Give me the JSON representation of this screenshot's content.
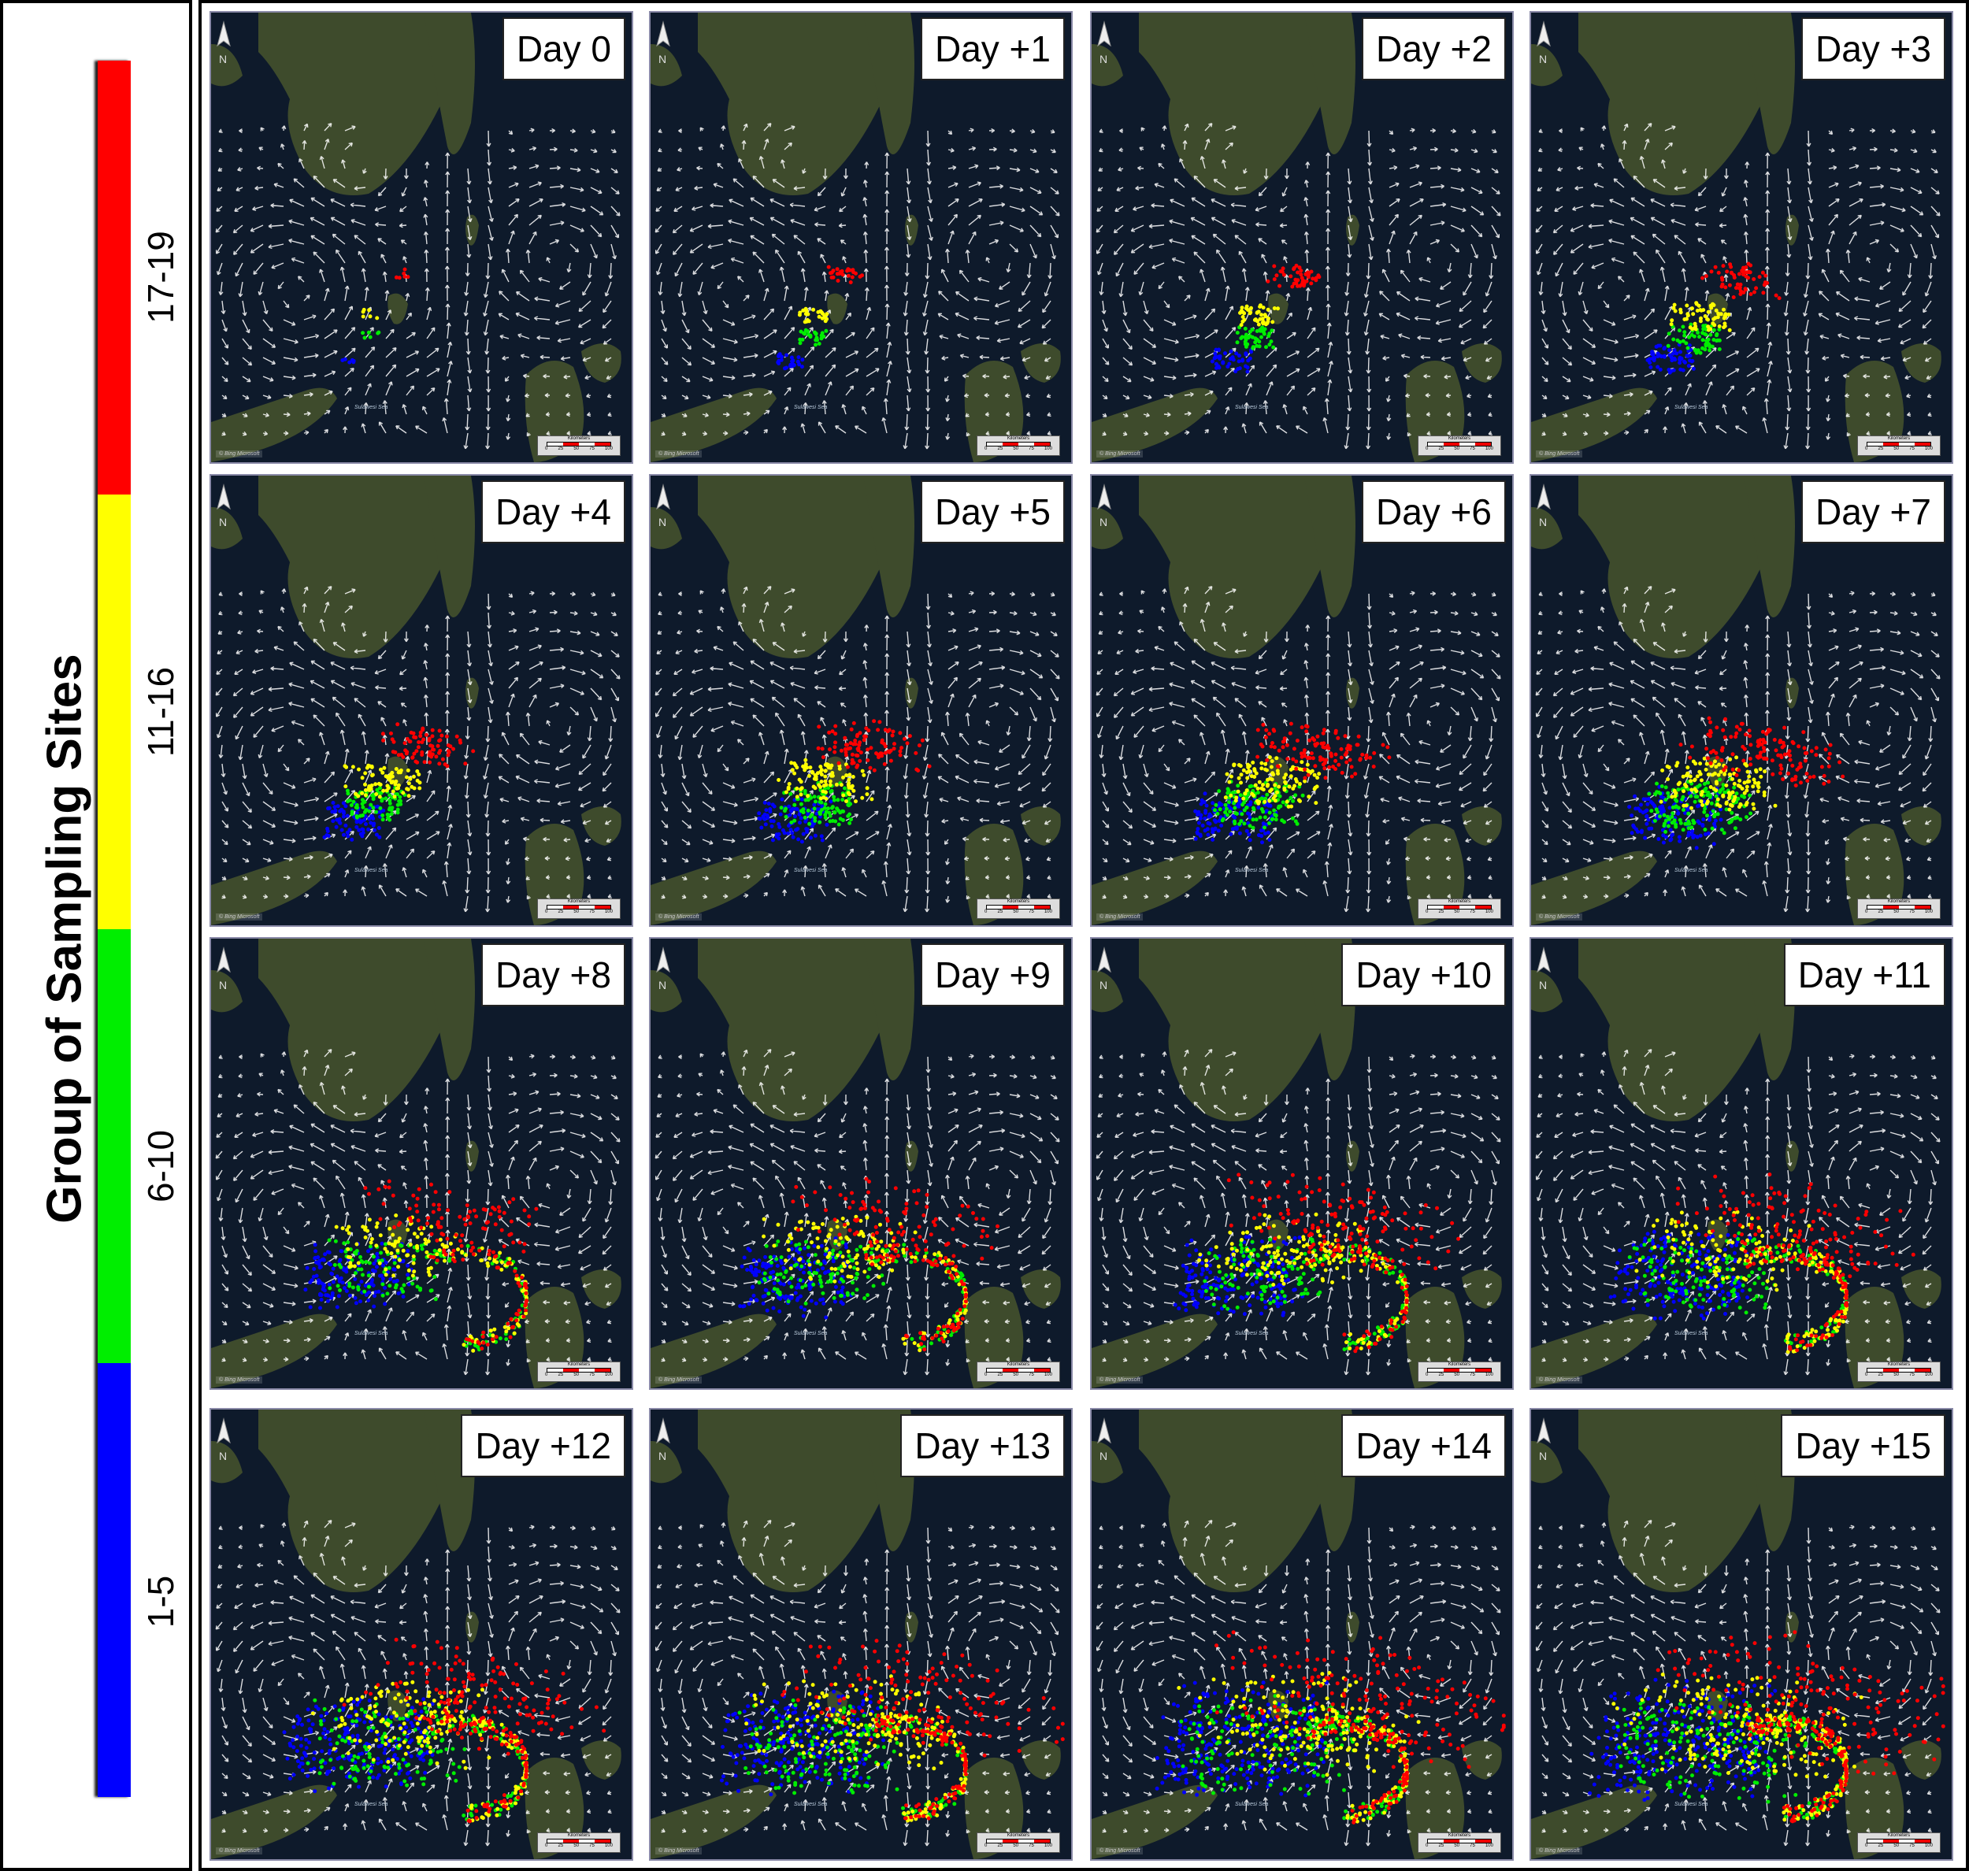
{
  "legend": {
    "title": "Group of Sampling Sites",
    "groups": [
      {
        "label": "17-19",
        "color": "#ff0000"
      },
      {
        "label": "11-16",
        "color": "#ffff00"
      },
      {
        "label": "6-10",
        "color": "#00ee00"
      },
      {
        "label": "1-5",
        "color": "#0000ff"
      }
    ]
  },
  "map": {
    "north_label": "N",
    "scale_title": "Kilometers",
    "scale_ticks": [
      "0",
      "25",
      "50",
      "75",
      "100"
    ],
    "attribution": "© Bing Microsoft",
    "sea_label": "Sulawesi Sea",
    "sea_color": "#0e1a2b",
    "land_color": "#3e4b2c",
    "arrow_color": "#ffffff"
  },
  "panels": [
    {
      "label": "Day 0",
      "day": 0
    },
    {
      "label": "Day +1",
      "day": 1
    },
    {
      "label": "Day +2",
      "day": 2
    },
    {
      "label": "Day +3",
      "day": 3
    },
    {
      "label": "Day +4",
      "day": 4
    },
    {
      "label": "Day +5",
      "day": 5
    },
    {
      "label": "Day +6",
      "day": 6
    },
    {
      "label": "Day +7",
      "day": 7
    },
    {
      "label": "Day +8",
      "day": 8
    },
    {
      "label": "Day +9",
      "day": 9
    },
    {
      "label": "Day +10",
      "day": 10
    },
    {
      "label": "Day +11",
      "day": 11
    },
    {
      "label": "Day +12",
      "day": 12
    },
    {
      "label": "Day +13",
      "day": 13
    },
    {
      "label": "Day +14",
      "day": 14
    },
    {
      "label": "Day +15",
      "day": 15
    }
  ]
}
